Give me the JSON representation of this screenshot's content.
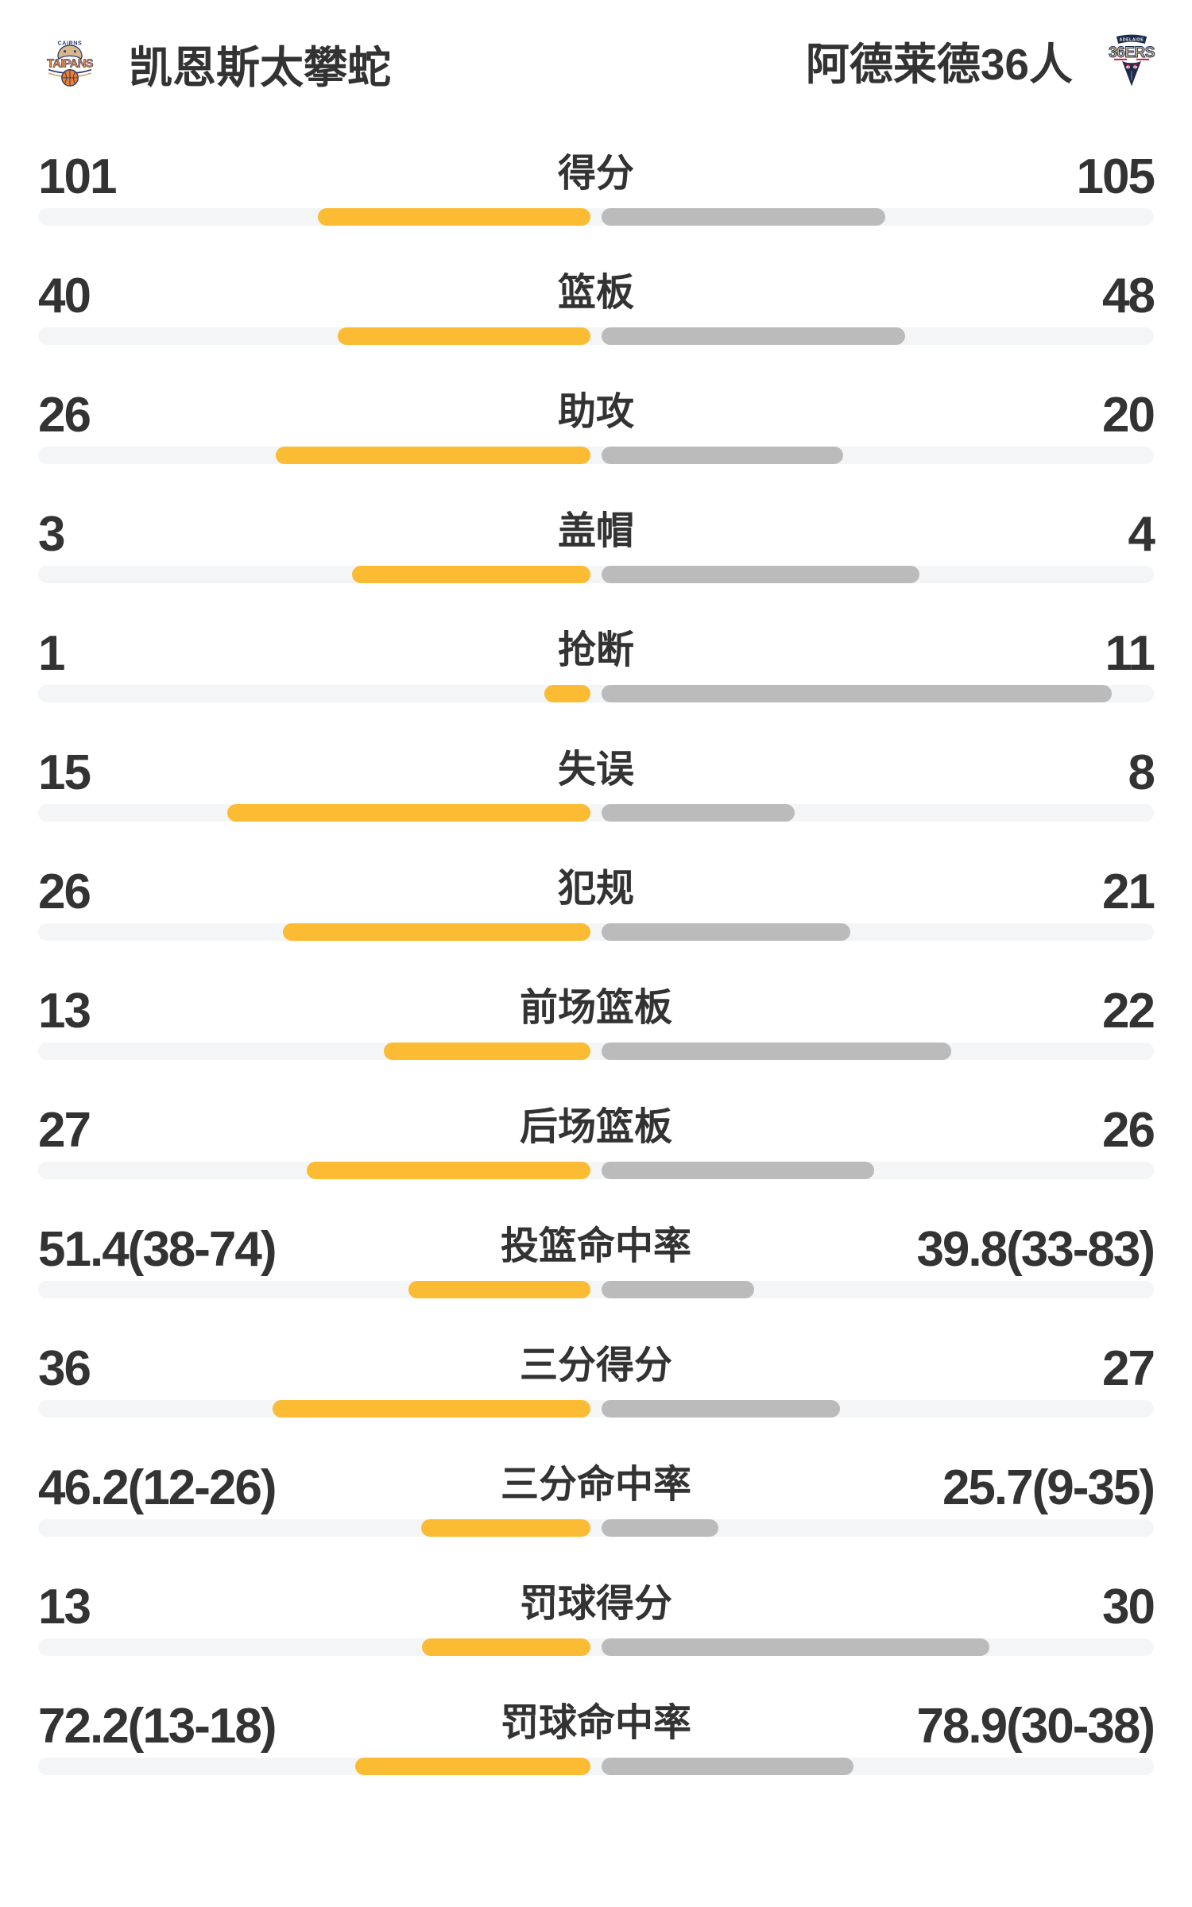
{
  "header": {
    "home": {
      "name": "凯恩斯太攀蛇",
      "logo": {
        "icon": "cairns-taipans-logo",
        "top_text": "CAIRNS",
        "main_text": "TAIPANS"
      }
    },
    "away": {
      "name": "阿德莱德36人",
      "logo": {
        "icon": "adelaide-36ers-logo",
        "top_text": "ADELAIDE",
        "main_text": "36ERS"
      }
    }
  },
  "colors": {
    "home_bar": "#FBBB33",
    "away_bar": "#BBBBBB",
    "track": "#F4F5F7",
    "text": "#333333"
  },
  "chart_data": {
    "type": "bar",
    "layout": "mirrored-horizontal-comparison",
    "legend_position": "none",
    "rows": [
      {
        "label": "得分",
        "home": "101",
        "away": "105",
        "home_value": 101,
        "away_value": 105,
        "kind": "count"
      },
      {
        "label": "篮板",
        "home": "40",
        "away": "48",
        "home_value": 40,
        "away_value": 48,
        "kind": "count"
      },
      {
        "label": "助攻",
        "home": "26",
        "away": "20",
        "home_value": 26,
        "away_value": 20,
        "kind": "count"
      },
      {
        "label": "盖帽",
        "home": "3",
        "away": "4",
        "home_value": 3,
        "away_value": 4,
        "kind": "count"
      },
      {
        "label": "抢断",
        "home": "1",
        "away": "11",
        "home_value": 1,
        "away_value": 11,
        "kind": "count"
      },
      {
        "label": "失误",
        "home": "15",
        "away": "8",
        "home_value": 15,
        "away_value": 8,
        "kind": "count"
      },
      {
        "label": "犯规",
        "home": "26",
        "away": "21",
        "home_value": 26,
        "away_value": 21,
        "kind": "count"
      },
      {
        "label": "前场篮板",
        "home": "13",
        "away": "22",
        "home_value": 13,
        "away_value": 22,
        "kind": "count"
      },
      {
        "label": "后场篮板",
        "home": "27",
        "away": "26",
        "home_value": 27,
        "away_value": 26,
        "kind": "count"
      },
      {
        "label": "投篮命中率",
        "home": "51.4(38-74)",
        "away": "39.8(33-83)",
        "home_value": 51.4,
        "away_value": 39.8,
        "kind": "percent"
      },
      {
        "label": "三分得分",
        "home": "36",
        "away": "27",
        "home_value": 36,
        "away_value": 27,
        "kind": "count"
      },
      {
        "label": "三分命中率",
        "home": "46.2(12-26)",
        "away": "25.7(9-35)",
        "home_value": 46.2,
        "away_value": 25.7,
        "kind": "percent"
      },
      {
        "label": "罚球得分",
        "home": "13",
        "away": "30",
        "home_value": 13,
        "away_value": 30,
        "kind": "count"
      },
      {
        "label": "罚球命中率",
        "home": "72.2(13-18)",
        "away": "78.9(30-38)",
        "home_value": 72.2,
        "away_value": 78.9,
        "kind": "percent"
      }
    ]
  }
}
